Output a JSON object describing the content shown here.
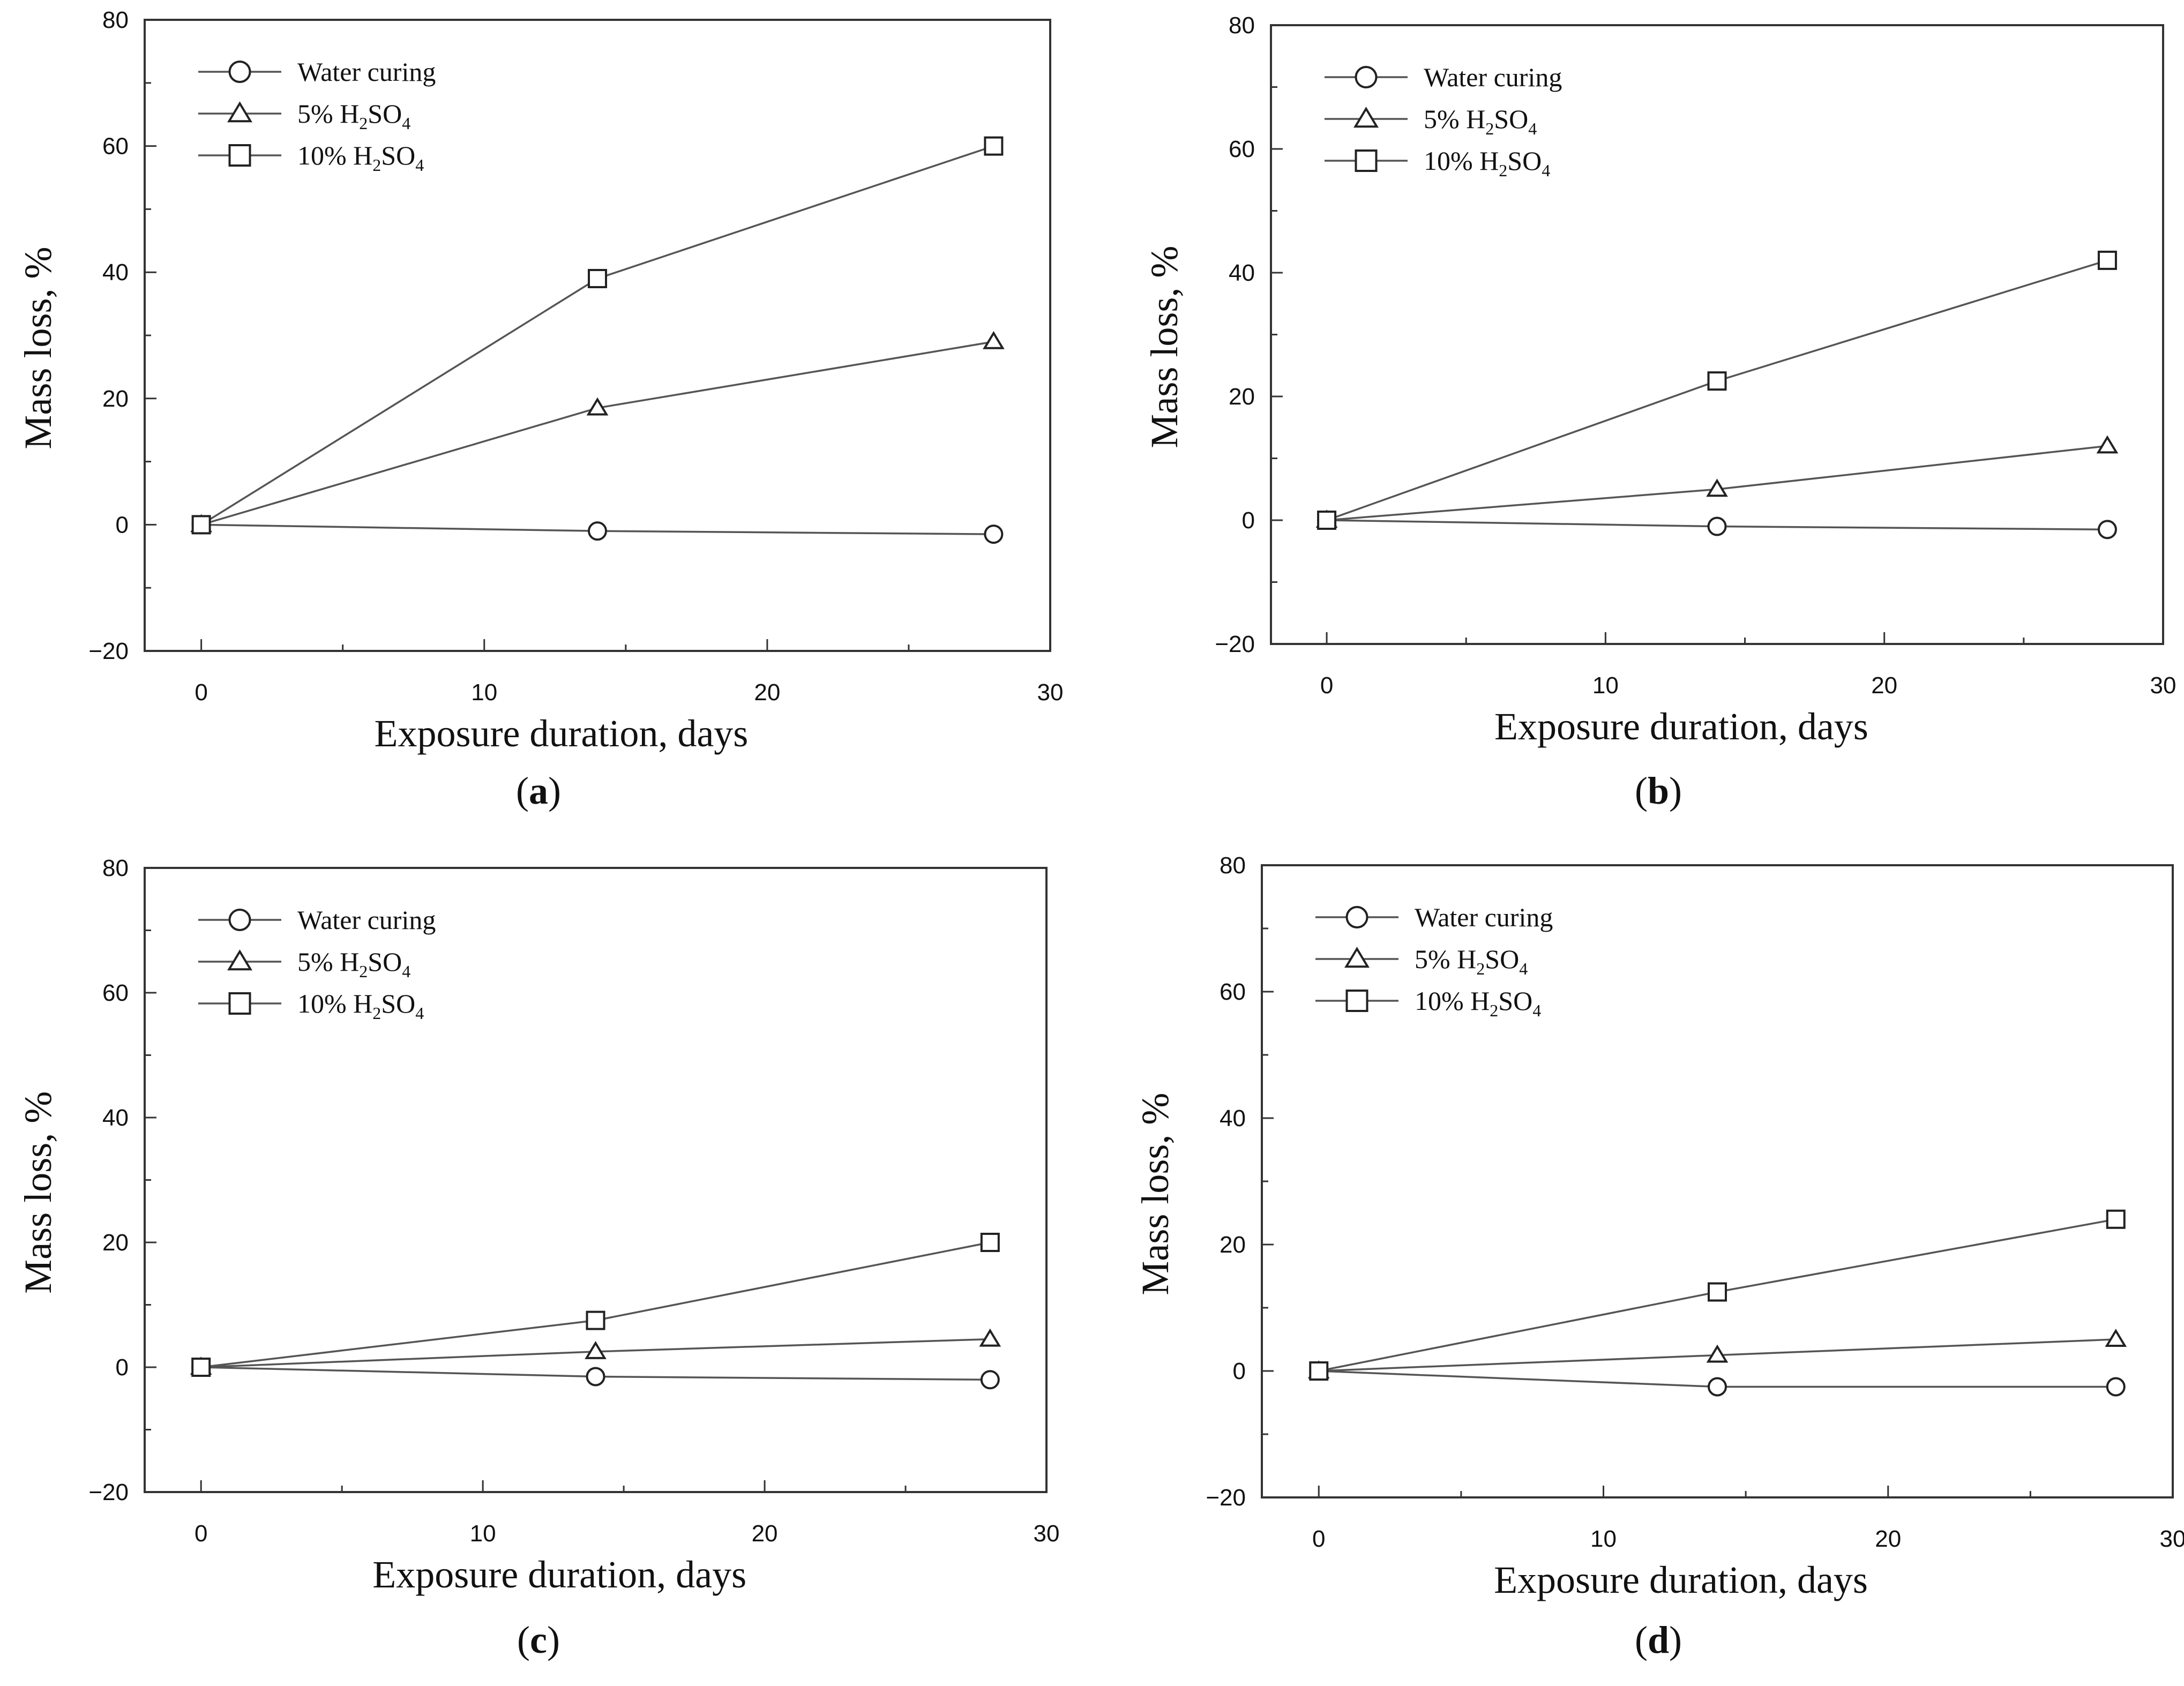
{
  "colors": {
    "line": "#555555",
    "marker": "#222222",
    "axis": "#333333",
    "text": "#111111",
    "background": "#ffffff"
  },
  "chart_data": [
    {
      "panel": "a",
      "caption": {
        "open": "(",
        "letter": "a",
        "close": ")"
      },
      "type": "line",
      "xlabel": "Exposure duration, days",
      "ylabel": "Mass loss, %",
      "xlim": [
        -2,
        30
      ],
      "ylim": [
        -20,
        80
      ],
      "xticks": [
        0,
        10,
        20,
        30
      ],
      "yticks": [
        -20,
        0,
        20,
        40,
        60,
        80
      ],
      "xtick_labels": [
        "0",
        "10",
        "20",
        "30"
      ],
      "ytick_labels": [
        "−20",
        "0",
        "20",
        "40",
        "60",
        "80"
      ],
      "x": [
        0,
        14,
        28
      ],
      "legend_position": "top-left",
      "series": [
        {
          "name": "Water curing",
          "marker": "circle",
          "values": [
            0,
            -1,
            -1.5
          ]
        },
        {
          "name": "5% H2SO4",
          "label_parts": [
            "5% H",
            "2",
            "SO",
            "4"
          ],
          "marker": "triangle",
          "values": [
            0,
            18.5,
            29
          ]
        },
        {
          "name": "10% H2SO4",
          "label_parts": [
            "10% H",
            "2",
            "SO",
            "4"
          ],
          "marker": "square",
          "values": [
            0,
            39,
            60
          ]
        }
      ]
    },
    {
      "panel": "b",
      "caption": {
        "open": "(",
        "letter": "b",
        "close": ")"
      },
      "type": "line",
      "xlabel": "Exposure duration, days",
      "ylabel": "Mass loss, %",
      "xlim": [
        -2,
        30
      ],
      "ylim": [
        -20,
        80
      ],
      "xticks": [
        0,
        10,
        20,
        30
      ],
      "yticks": [
        -20,
        0,
        20,
        40,
        60,
        80
      ],
      "xtick_labels": [
        "0",
        "10",
        "20",
        "30"
      ],
      "ytick_labels": [
        "−20",
        "0",
        "20",
        "40",
        "60",
        "80"
      ],
      "x": [
        0,
        14,
        28
      ],
      "legend_position": "top-left",
      "series": [
        {
          "name": "Water curing",
          "marker": "circle",
          "values": [
            0,
            -1,
            -1.5
          ]
        },
        {
          "name": "5% H2SO4",
          "label_parts": [
            "5% H",
            "2",
            "SO",
            "4"
          ],
          "marker": "triangle",
          "values": [
            0,
            5,
            12
          ]
        },
        {
          "name": "10% H2SO4",
          "label_parts": [
            "10% H",
            "2",
            "SO",
            "4"
          ],
          "marker": "square",
          "values": [
            0,
            22.5,
            42
          ]
        }
      ]
    },
    {
      "panel": "c",
      "caption": {
        "open": "(",
        "letter": "c",
        "close": ")"
      },
      "type": "line",
      "xlabel": "Exposure duration, days",
      "ylabel": "Mass loss, %",
      "xlim": [
        -2,
        30
      ],
      "ylim": [
        -20,
        80
      ],
      "xticks": [
        0,
        10,
        20,
        30
      ],
      "yticks": [
        -20,
        0,
        20,
        40,
        60,
        80
      ],
      "xtick_labels": [
        "0",
        "10",
        "20",
        "30"
      ],
      "ytick_labels": [
        "−20",
        "0",
        "20",
        "40",
        "60",
        "80"
      ],
      "x": [
        0,
        14,
        28
      ],
      "legend_position": "top-left",
      "series": [
        {
          "name": "Water curing",
          "marker": "circle",
          "values": [
            0,
            -1.5,
            -2
          ]
        },
        {
          "name": "5% H2SO4",
          "label_parts": [
            "5% H",
            "2",
            "SO",
            "4"
          ],
          "marker": "triangle",
          "values": [
            0,
            2.5,
            4.5
          ]
        },
        {
          "name": "10% H2SO4",
          "label_parts": [
            "10% H",
            "2",
            "SO",
            "4"
          ],
          "marker": "square",
          "values": [
            0,
            7.5,
            20
          ]
        }
      ]
    },
    {
      "panel": "d",
      "caption": {
        "open": "(",
        "letter": "d",
        "close": ")"
      },
      "type": "line",
      "xlabel": "Exposure duration, days",
      "ylabel": "Mass loss, %",
      "xlim": [
        -2,
        30
      ],
      "ylim": [
        -20,
        80
      ],
      "xticks": [
        0,
        10,
        20,
        30
      ],
      "yticks": [
        -20,
        0,
        20,
        40,
        60,
        80
      ],
      "xtick_labels": [
        "0",
        "10",
        "20",
        "30"
      ],
      "ytick_labels": [
        "−20",
        "0",
        "20",
        "40",
        "60",
        "80"
      ],
      "x": [
        0,
        14,
        28
      ],
      "legend_position": "top-left",
      "series": [
        {
          "name": "Water curing",
          "marker": "circle",
          "values": [
            0,
            -2.5,
            -2.5
          ]
        },
        {
          "name": "5% H2SO4",
          "label_parts": [
            "5% H",
            "2",
            "SO",
            "4"
          ],
          "marker": "triangle",
          "values": [
            0,
            2.5,
            5
          ]
        },
        {
          "name": "10% H2SO4",
          "label_parts": [
            "10% H",
            "2",
            "SO",
            "4"
          ],
          "marker": "square",
          "values": [
            0,
            12.5,
            24
          ]
        }
      ]
    }
  ]
}
